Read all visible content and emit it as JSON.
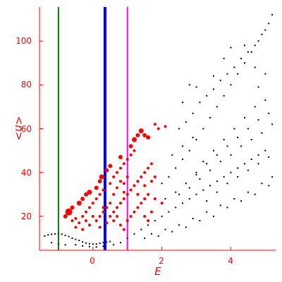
{
  "chart_data": {
    "type": "scatter",
    "xlabel": "E",
    "ylabel": "<n>",
    "xlim": [
      -1.55,
      5.3
    ],
    "ylim": [
      4.5,
      115.5
    ],
    "xticks": [
      0,
      2,
      4
    ],
    "yticks": [
      20,
      40,
      60,
      80,
      100
    ],
    "grid": false,
    "vlines": [
      {
        "x": -1.0,
        "color": "#008000"
      },
      {
        "x": 0.35,
        "color": "#0000ff"
      },
      {
        "x": 1.0,
        "color": "#ff00ff"
      }
    ],
    "colors": {
      "axis": "#ff0000",
      "black_points": "#000000",
      "red_points": "#ff0000"
    },
    "series": [
      {
        "color": "#000000",
        "points": [
          [
            -1.4,
            11
          ],
          [
            -1.3,
            11.5
          ],
          [
            -1.2,
            11.8
          ],
          [
            -1.1,
            12
          ],
          [
            -1.0,
            12
          ],
          [
            -0.9,
            11.8
          ],
          [
            -0.8,
            11.3
          ],
          [
            -0.7,
            10.8
          ],
          [
            -0.6,
            10
          ],
          [
            -0.5,
            9.5
          ],
          [
            -0.4,
            9
          ],
          [
            -0.3,
            8.3
          ],
          [
            -0.2,
            7.8
          ],
          [
            -0.1,
            7.5
          ],
          [
            0.0,
            7.3
          ],
          [
            0.1,
            7.4
          ],
          [
            0.2,
            7.7
          ],
          [
            0.3,
            8
          ],
          [
            0.4,
            8.2
          ],
          [
            0.5,
            8.5
          ],
          [
            -0.5,
            7
          ],
          [
            -0.3,
            6.5
          ],
          [
            -0.1,
            6.2
          ],
          [
            0.1,
            6
          ],
          [
            0.3,
            6.3
          ],
          [
            0.6,
            7
          ],
          [
            0.8,
            8
          ],
          [
            -1.2,
            8
          ],
          [
            -1.0,
            7.5
          ],
          [
            -0.8,
            7
          ],
          [
            1.0,
            10
          ],
          [
            1.2,
            12
          ],
          [
            1.4,
            14
          ],
          [
            1.6,
            16
          ],
          [
            1.8,
            18
          ],
          [
            2.0,
            20
          ],
          [
            2.2,
            22
          ],
          [
            2.4,
            24
          ],
          [
            2.6,
            26
          ],
          [
            2.8,
            28
          ],
          [
            3.0,
            30
          ],
          [
            3.2,
            32
          ],
          [
            3.4,
            34
          ],
          [
            3.6,
            36
          ],
          [
            3.8,
            38
          ],
          [
            4.0,
            40
          ],
          [
            4.2,
            42
          ],
          [
            4.4,
            44
          ],
          [
            4.6,
            46
          ],
          [
            4.8,
            48
          ],
          [
            5.0,
            50
          ],
          [
            1.5,
            10
          ],
          [
            1.7,
            12
          ],
          [
            1.9,
            11
          ],
          [
            2.1,
            14
          ],
          [
            2.3,
            13
          ],
          [
            2.5,
            16
          ],
          [
            2.7,
            15
          ],
          [
            2.9,
            19
          ],
          [
            3.1,
            18
          ],
          [
            3.3,
            22
          ],
          [
            3.5,
            20
          ],
          [
            3.7,
            25
          ],
          [
            3.9,
            24
          ],
          [
            4.1,
            28
          ],
          [
            4.3,
            27
          ],
          [
            4.5,
            31
          ],
          [
            4.7,
            30
          ],
          [
            4.9,
            35
          ],
          [
            5.1,
            34
          ],
          [
            5.2,
            38
          ],
          [
            2.0,
            35
          ],
          [
            2.2,
            38
          ],
          [
            2.4,
            42
          ],
          [
            2.6,
            46
          ],
          [
            2.8,
            50
          ],
          [
            3.0,
            55
          ],
          [
            3.2,
            60
          ],
          [
            3.4,
            65
          ],
          [
            3.6,
            70
          ],
          [
            3.8,
            75
          ],
          [
            4.0,
            80
          ],
          [
            4.2,
            85
          ],
          [
            4.4,
            90
          ],
          [
            4.6,
            95
          ],
          [
            4.8,
            100
          ],
          [
            5.0,
            105
          ],
          [
            5.2,
            112
          ],
          [
            2.5,
            60
          ],
          [
            2.7,
            63
          ],
          [
            2.9,
            67
          ],
          [
            3.1,
            72
          ],
          [
            3.3,
            75
          ],
          [
            3.5,
            78
          ],
          [
            3.7,
            82
          ],
          [
            3.9,
            85
          ],
          [
            4.1,
            88
          ],
          [
            4.3,
            92
          ],
          [
            4.5,
            95
          ],
          [
            4.7,
            98
          ],
          [
            4.9,
            103
          ],
          [
            5.1,
            108
          ],
          [
            2.5,
            30
          ],
          [
            2.8,
            33
          ],
          [
            3.1,
            37
          ],
          [
            3.4,
            41
          ],
          [
            3.7,
            45
          ],
          [
            4.0,
            48
          ],
          [
            4.3,
            52
          ],
          [
            4.6,
            55
          ],
          [
            4.9,
            58
          ],
          [
            5.2,
            62
          ],
          [
            2.3,
            48
          ],
          [
            2.6,
            52
          ],
          [
            2.9,
            56
          ],
          [
            3.2,
            45
          ],
          [
            3.5,
            50
          ],
          [
            3.8,
            55
          ],
          [
            4.1,
            60
          ],
          [
            4.4,
            65
          ],
          [
            4.7,
            70
          ],
          [
            5.0,
            73
          ],
          [
            3.0,
            40
          ],
          [
            3.3,
            44
          ],
          [
            3.6,
            48
          ],
          [
            3.9,
            52
          ],
          [
            4.2,
            56
          ],
          [
            4.5,
            60
          ],
          [
            4.8,
            64
          ],
          [
            5.1,
            67
          ],
          [
            2.1,
            28
          ],
          [
            2.4,
            31
          ],
          [
            2.7,
            35
          ],
          [
            3.0,
            39
          ],
          [
            3.3,
            27
          ],
          [
            3.6,
            31
          ],
          [
            3.9,
            35
          ],
          [
            4.2,
            38
          ],
          [
            4.5,
            41
          ],
          [
            4.8,
            44
          ],
          [
            5.1,
            47
          ],
          [
            3.8,
            92
          ],
          [
            4.0,
            97
          ],
          [
            4.4,
            98
          ],
          [
            4.7,
            88
          ],
          [
            5.0,
            85
          ],
          [
            4.8,
            79
          ],
          [
            3.5,
            84
          ],
          [
            3.0,
            79
          ],
          [
            2.8,
            80
          ],
          [
            2.6,
            72
          ]
        ]
      },
      {
        "color": "#ff0000",
        "points": [
          [
            -0.8,
            20,
            5
          ],
          [
            -0.7,
            22,
            9
          ],
          [
            -0.6,
            24,
            5
          ],
          [
            -0.4,
            26,
            6
          ],
          [
            -0.3,
            28,
            5
          ],
          [
            -0.2,
            30,
            5
          ],
          [
            -0.1,
            31,
            6
          ],
          [
            0.1,
            33,
            5
          ],
          [
            0.2,
            36,
            5
          ],
          [
            0.25,
            38,
            6
          ],
          [
            0.4,
            41,
            5
          ],
          [
            0.5,
            43,
            5
          ],
          [
            0.8,
            47,
            5
          ],
          [
            1.1,
            52,
            5
          ],
          [
            1.2,
            55,
            6
          ],
          [
            1.3,
            57,
            5
          ],
          [
            1.4,
            59,
            6
          ],
          [
            1.5,
            57,
            5
          ],
          [
            1.6,
            56,
            5
          ],
          [
            1.8,
            62,
            3
          ],
          [
            1.9,
            60,
            3
          ],
          [
            2.1,
            61,
            3
          ],
          [
            -0.6,
            18,
            3
          ],
          [
            -0.5,
            19,
            3
          ],
          [
            -0.4,
            17,
            3
          ],
          [
            -0.3,
            20,
            3
          ],
          [
            -0.2,
            22,
            3
          ],
          [
            -0.1,
            24,
            3
          ],
          [
            0.0,
            26,
            3
          ],
          [
            0.1,
            28,
            3
          ],
          [
            0.2,
            30,
            3
          ],
          [
            0.3,
            32,
            3
          ],
          [
            0.5,
            35,
            3
          ],
          [
            0.6,
            38,
            3
          ],
          [
            0.7,
            40,
            3
          ],
          [
            0.8,
            42,
            3
          ],
          [
            0.9,
            44,
            3
          ],
          [
            1.0,
            46,
            3
          ],
          [
            1.1,
            48,
            3
          ],
          [
            1.2,
            50,
            3
          ],
          [
            -0.5,
            15,
            3
          ],
          [
            -0.3,
            14,
            3
          ],
          [
            -0.1,
            16,
            3
          ],
          [
            0.1,
            18,
            3
          ],
          [
            0.2,
            15,
            3
          ],
          [
            0.4,
            17,
            3
          ],
          [
            0.5,
            20,
            3
          ],
          [
            0.6,
            22,
            3
          ],
          [
            0.7,
            24,
            3
          ],
          [
            0.8,
            26,
            3
          ],
          [
            0.9,
            28,
            3
          ],
          [
            1.0,
            30,
            3
          ],
          [
            1.1,
            32,
            3
          ],
          [
            1.2,
            34,
            3
          ],
          [
            1.3,
            36,
            3
          ],
          [
            1.4,
            38,
            3
          ],
          [
            1.5,
            40,
            3
          ],
          [
            1.6,
            42,
            3
          ],
          [
            1.7,
            44,
            3
          ],
          [
            0.2,
            20,
            3
          ],
          [
            0.3,
            22,
            3
          ],
          [
            0.4,
            24,
            3
          ],
          [
            0.5,
            26,
            3
          ],
          [
            0.6,
            18,
            3
          ],
          [
            0.7,
            20,
            3
          ],
          [
            0.8,
            16,
            3
          ],
          [
            0.9,
            14,
            3
          ],
          [
            1.0,
            18,
            3
          ],
          [
            1.1,
            20,
            3
          ],
          [
            1.2,
            22,
            3
          ],
          [
            1.3,
            24,
            3
          ],
          [
            1.4,
            26,
            3
          ],
          [
            1.5,
            28,
            3
          ],
          [
            1.6,
            30,
            3
          ],
          [
            1.8,
            28,
            3
          ],
          [
            2.0,
            26,
            3
          ],
          [
            0.9,
            35,
            3
          ],
          [
            1.0,
            38,
            3
          ],
          [
            1.3,
            30,
            3
          ],
          [
            1.5,
            34,
            3
          ],
          [
            1.7,
            36,
            3
          ],
          [
            1.8,
            38,
            3
          ],
          [
            0.6,
            30,
            3
          ],
          [
            0.7,
            33,
            3
          ],
          [
            0.8,
            36,
            3
          ],
          [
            0.9,
            31,
            3
          ],
          [
            0.3,
            24,
            3
          ],
          [
            0.0,
            20,
            3
          ],
          [
            -0.2,
            18,
            3
          ],
          [
            1.5,
            20,
            3
          ],
          [
            1.6,
            18,
            3
          ],
          [
            1.7,
            22,
            3
          ]
        ]
      }
    ]
  },
  "axis": {
    "x_title": "E",
    "y_title": "<n>",
    "x_tick_labels": [
      "0",
      "2",
      "4"
    ],
    "y_tick_labels": [
      "20",
      "40",
      "60",
      "80",
      "100"
    ]
  }
}
